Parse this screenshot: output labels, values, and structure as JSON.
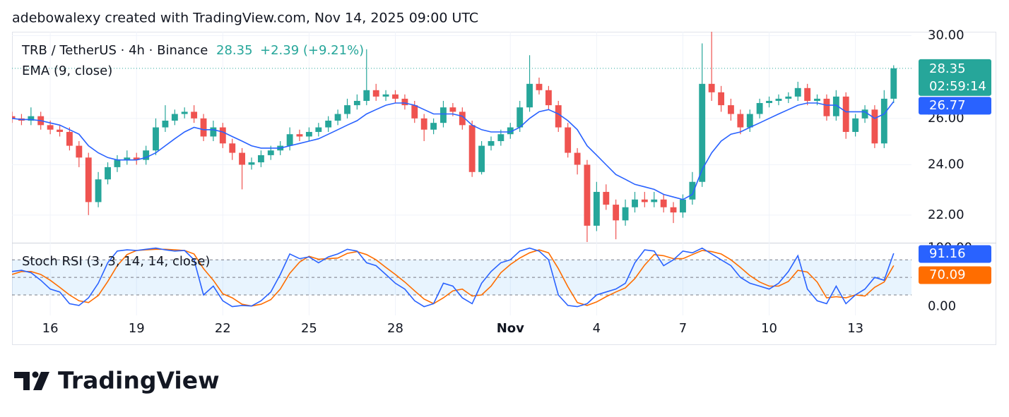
{
  "watermark": "adebowalexy created with TradingView.com, Nov 14, 2025 09:00 UTC",
  "logo": "TradingView",
  "chart_data": [
    {
      "type": "candlestick",
      "title": "TRB / TetherUS · 4h · Binance",
      "change": "+2.39 (+9.21%)",
      "countdown": "02:59:14",
      "up_color": "#26a69a",
      "down_color": "#ef5350",
      "log_scale": true,
      "grid": true,
      "xlim": [
        14.67,
        45.95
      ],
      "ylim": [
        21.0,
        30.2
      ],
      "yticks": [
        {
          "value": 22,
          "label": "22.00"
        },
        {
          "value": 24,
          "label": "24.00"
        },
        {
          "value": 26,
          "label": "26.00"
        },
        {
          "value": 30,
          "label": "30.00"
        }
      ],
      "x": [
        14.67,
        15,
        15.33,
        15.67,
        16,
        16.33,
        16.67,
        17,
        17.33,
        17.67,
        18,
        18.33,
        18.67,
        19,
        19.33,
        19.67,
        20,
        20.33,
        20.67,
        21,
        21.33,
        21.67,
        22,
        22.33,
        22.67,
        23,
        23.33,
        23.67,
        24,
        24.33,
        24.67,
        25,
        25.33,
        25.67,
        26,
        26.33,
        26.67,
        27,
        27.33,
        27.67,
        28,
        28.33,
        28.67,
        29,
        29.33,
        29.67,
        30,
        30.33,
        30.67,
        31,
        31.33,
        31.67,
        32,
        32.33,
        32.67,
        33,
        33.33,
        33.67,
        34,
        34.33,
        34.67,
        35,
        35.33,
        35.67,
        36,
        36.33,
        36.67,
        37,
        37.33,
        37.67,
        38,
        38.33,
        38.67,
        39,
        39.33,
        39.67,
        40,
        40.33,
        40.67,
        41,
        41.33,
        41.67,
        42,
        42.33,
        42.67,
        43,
        43.33,
        43.67,
        44,
        44.33,
        44.67,
        45,
        45.33
      ],
      "open": [
        26.1,
        26.0,
        25.9,
        26.1,
        25.7,
        25.5,
        25.4,
        24.8,
        24.3,
        22.5,
        23.4,
        23.9,
        24.2,
        24.3,
        24.2,
        24.6,
        25.6,
        25.9,
        26.2,
        26.3,
        26.0,
        25.2,
        25.6,
        24.9,
        24.5,
        24.0,
        24.1,
        24.4,
        24.6,
        24.8,
        25.3,
        25.2,
        25.4,
        25.6,
        25.9,
        26.2,
        26.6,
        26.8,
        27.3,
        27.0,
        27.1,
        26.9,
        26.6,
        26.0,
        25.5,
        25.8,
        26.5,
        26.3,
        25.7,
        23.7,
        24.8,
        25.0,
        25.3,
        25.6,
        26.5,
        27.6,
        27.3,
        26.6,
        25.6,
        24.5,
        24.0,
        21.6,
        22.9,
        22.4,
        21.8,
        22.3,
        22.6,
        22.5,
        22.6,
        22.3,
        22.1,
        22.6,
        23.3,
        27.6,
        27.2,
        26.6,
        26.2,
        25.6,
        26.2,
        26.7,
        26.8,
        26.9,
        27.0,
        27.4,
        26.8,
        26.9,
        26.1,
        27.0,
        25.4,
        26.0,
        26.4,
        24.9,
        26.9
      ],
      "high": [
        26.3,
        26.2,
        26.5,
        26.3,
        25.9,
        25.7,
        25.6,
        25.0,
        24.5,
        23.7,
        24.1,
        24.4,
        24.6,
        24.5,
        24.8,
        26.0,
        26.6,
        26.4,
        26.5,
        26.6,
        26.2,
        25.9,
        25.8,
        25.1,
        24.7,
        24.3,
        24.6,
        24.8,
        25.0,
        25.6,
        25.5,
        25.6,
        25.8,
        26.1,
        26.4,
        26.9,
        27.1,
        29.3,
        27.6,
        27.3,
        27.3,
        27.1,
        26.8,
        26.2,
        26.0,
        26.8,
        26.7,
        26.5,
        25.9,
        25.0,
        25.2,
        25.5,
        25.8,
        26.8,
        29.0,
        27.9,
        27.5,
        26.8,
        25.8,
        24.7,
        24.2,
        23.3,
        23.2,
        22.6,
        22.6,
        22.9,
        22.9,
        22.9,
        22.8,
        22.5,
        22.8,
        23.7,
        29.6,
        30.2,
        27.5,
        26.9,
        26.4,
        26.4,
        26.9,
        27.0,
        27.1,
        27.2,
        27.7,
        27.6,
        27.1,
        27.1,
        27.3,
        27.2,
        26.2,
        26.6,
        26.6,
        27.3,
        28.5
      ],
      "low": [
        25.8,
        25.7,
        25.7,
        25.5,
        25.3,
        25.2,
        24.6,
        23.9,
        22.0,
        22.3,
        23.2,
        23.7,
        24.0,
        24.0,
        24.0,
        24.4,
        25.4,
        25.7,
        26.0,
        25.8,
        25.0,
        25.0,
        24.7,
        24.2,
        23.0,
        23.8,
        23.9,
        24.2,
        24.4,
        24.6,
        25.0,
        25.0,
        25.2,
        25.4,
        25.7,
        26.0,
        26.4,
        26.6,
        26.8,
        26.8,
        26.7,
        26.4,
        25.8,
        25.0,
        25.3,
        25.6,
        26.1,
        25.5,
        23.5,
        23.6,
        24.6,
        24.8,
        25.1,
        25.4,
        26.3,
        27.1,
        26.4,
        25.4,
        24.3,
        23.6,
        21.0,
        21.4,
        22.2,
        21.1,
        21.6,
        22.1,
        22.3,
        22.3,
        22.1,
        21.7,
        21.9,
        22.4,
        23.1,
        26.8,
        26.3,
        25.9,
        25.3,
        25.4,
        26.0,
        26.5,
        26.6,
        26.7,
        26.8,
        26.6,
        26.6,
        25.9,
        25.9,
        25.1,
        25.2,
        25.8,
        24.7,
        24.7,
        26.7
      ],
      "close": [
        26.0,
        25.9,
        26.1,
        25.7,
        25.5,
        25.4,
        24.8,
        24.3,
        22.5,
        23.4,
        23.9,
        24.2,
        24.3,
        24.2,
        24.6,
        25.6,
        25.9,
        26.2,
        26.3,
        26.0,
        25.2,
        25.6,
        24.9,
        24.5,
        24.0,
        24.1,
        24.4,
        24.6,
        24.8,
        25.3,
        25.2,
        25.4,
        25.6,
        25.9,
        26.2,
        26.6,
        26.8,
        27.3,
        27.0,
        27.1,
        26.9,
        26.6,
        26.0,
        25.5,
        25.8,
        26.5,
        26.3,
        25.7,
        23.7,
        24.8,
        25.0,
        25.3,
        25.6,
        26.5,
        27.6,
        27.3,
        26.6,
        25.6,
        24.5,
        24.0,
        21.6,
        22.9,
        22.4,
        21.8,
        22.3,
        22.6,
        22.5,
        22.6,
        22.3,
        22.1,
        22.6,
        23.3,
        27.6,
        27.2,
        26.6,
        26.2,
        25.6,
        26.2,
        26.7,
        26.8,
        26.9,
        27.0,
        27.4,
        26.8,
        26.9,
        26.1,
        27.0,
        25.4,
        26.0,
        26.4,
        24.9,
        26.9,
        28.35
      ],
      "series": [
        {
          "name": "EMA (9, close)",
          "color": "#2962ff",
          "values": [
            26.0,
            25.95,
            25.95,
            25.9,
            25.8,
            25.7,
            25.5,
            25.3,
            24.8,
            24.5,
            24.3,
            24.2,
            24.2,
            24.2,
            24.3,
            24.5,
            24.8,
            25.1,
            25.4,
            25.6,
            25.5,
            25.5,
            25.4,
            25.2,
            25.0,
            24.8,
            24.7,
            24.7,
            24.7,
            24.8,
            24.9,
            25.0,
            25.1,
            25.3,
            25.5,
            25.7,
            25.9,
            26.2,
            26.4,
            26.6,
            26.7,
            26.7,
            26.6,
            26.4,
            26.2,
            26.2,
            26.2,
            26.1,
            25.7,
            25.5,
            25.4,
            25.4,
            25.4,
            25.6,
            26.0,
            26.3,
            26.4,
            26.2,
            25.9,
            25.5,
            24.8,
            24.4,
            24.0,
            23.6,
            23.4,
            23.2,
            23.1,
            23.0,
            22.8,
            22.7,
            22.6,
            22.8,
            23.8,
            24.5,
            25.0,
            25.3,
            25.4,
            25.6,
            25.8,
            26.0,
            26.2,
            26.4,
            26.6,
            26.7,
            26.7,
            26.6,
            26.6,
            26.3,
            26.3,
            26.3,
            26.0,
            26.2,
            26.77
          ]
        }
      ]
    },
    {
      "type": "line",
      "title": "Stoch RSI (3, 3, 14, 14, close)",
      "xlim": [
        14.67,
        45.95
      ],
      "xticks": [
        16,
        19,
        22,
        25,
        28,
        {
          "value": 32,
          "label": "Nov"
        },
        {
          "value": 35,
          "label": "4"
        },
        {
          "value": 38,
          "label": "7"
        },
        {
          "value": 41,
          "label": "10"
        },
        {
          "value": 44,
          "label": "13"
        }
      ],
      "ylim": [
        -15,
        108
      ],
      "yticks": [
        {
          "value": 0,
          "label": "0.00"
        },
        {
          "value": 100,
          "label": "100.00"
        }
      ],
      "hlines": [
        80,
        50,
        20
      ],
      "band_color": "#2196f3",
      "series": [
        {
          "color": "#2962ff",
          "values": [
            60,
            62,
            58,
            45,
            30,
            25,
            5,
            2,
            15,
            40,
            75,
            95,
            97,
            96,
            98,
            100,
            97,
            95,
            96,
            80,
            20,
            35,
            10,
            0,
            2,
            1,
            10,
            25,
            55,
            90,
            82,
            85,
            75,
            85,
            90,
            98,
            95,
            75,
            70,
            55,
            40,
            30,
            10,
            0,
            5,
            40,
            35,
            15,
            5,
            40,
            60,
            75,
            80,
            95,
            100,
            95,
            80,
            20,
            2,
            0,
            5,
            20,
            25,
            30,
            40,
            75,
            97,
            95,
            70,
            80,
            95,
            92,
            100,
            90,
            80,
            70,
            50,
            40,
            35,
            30,
            40,
            60,
            87,
            30,
            10,
            5,
            35,
            5,
            20,
            30,
            50,
            45,
            91.16
          ]
        },
        {
          "color": "#ff6d00",
          "values": [
            55,
            60,
            60,
            55,
            45,
            33,
            20,
            10,
            7,
            19,
            43,
            70,
            89,
            96,
            97,
            98,
            98,
            97,
            96,
            90,
            65,
            45,
            22,
            15,
            4,
            1,
            4,
            12,
            30,
            57,
            76,
            86,
            81,
            82,
            83,
            91,
            94,
            89,
            80,
            67,
            55,
            42,
            27,
            13,
            5,
            15,
            27,
            30,
            18,
            20,
            35,
            58,
            72,
            83,
            92,
            97,
            92,
            65,
            34,
            7,
            2,
            8,
            17,
            25,
            32,
            48,
            71,
            89,
            87,
            82,
            82,
            89,
            96,
            94,
            90,
            80,
            67,
            53,
            42,
            35,
            35,
            43,
            62,
            59,
            42,
            15,
            17,
            15,
            20,
            18,
            33,
            42,
            70.09
          ]
        }
      ]
    }
  ]
}
